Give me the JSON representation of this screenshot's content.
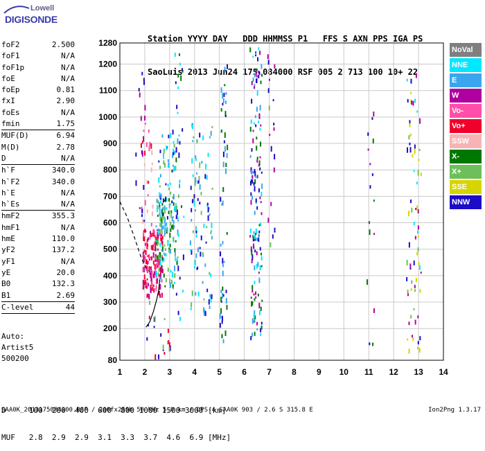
{
  "logo": {
    "top": "Lowell",
    "main": "DIGISONDE"
  },
  "header": {
    "line1": "Station YYYY DAY   DDD HHMMSS P1   FFS S AXN PPS IGA PS",
    "line2": "SaoLuis 2013 Jun24 175 084000 RSF 005 2 713 100 10+ 22"
  },
  "parameters": [
    {
      "name": "foF2",
      "value": "2.500"
    },
    {
      "name": "foF1",
      "value": "N/A"
    },
    {
      "name": "foF1p",
      "value": "N/A"
    },
    {
      "name": "foE",
      "value": "N/A"
    },
    {
      "name": "foEp",
      "value": "0.81"
    },
    {
      "name": "fxI",
      "value": "2.90"
    },
    {
      "name": "foEs",
      "value": "N/A"
    },
    {
      "name": "fmin",
      "value": "1.75"
    },
    {
      "name": "MUF(D)",
      "value": "6.94"
    },
    {
      "name": "M(D)",
      "value": "2.78"
    },
    {
      "name": "D",
      "value": "N/A"
    },
    {
      "name": "h`F",
      "value": "340.0"
    },
    {
      "name": "h`F2",
      "value": "340.0"
    },
    {
      "name": "h`E",
      "value": "N/A"
    },
    {
      "name": "h`Es",
      "value": "N/A"
    },
    {
      "name": "hmF2",
      "value": "355.3"
    },
    {
      "name": "hmF1",
      "value": "N/A"
    },
    {
      "name": "hmE",
      "value": "110.0"
    },
    {
      "name": "yF2",
      "value": "137.2"
    },
    {
      "name": "yF1",
      "value": "N/A"
    },
    {
      "name": "yE",
      "value": "20.0"
    },
    {
      "name": "B0",
      "value": "132.3"
    },
    {
      "name": "B1",
      "value": "2.69"
    },
    {
      "name": "C-level",
      "value": "44"
    }
  ],
  "auto": {
    "line1": "Auto:",
    "line2": "Artist5",
    "line3": "500200"
  },
  "legend": [
    {
      "label": "NoVal",
      "color": "#7f7f7f"
    },
    {
      "label": "NNE",
      "color": "#00e8ff"
    },
    {
      "label": "E",
      "color": "#3aa6f0"
    },
    {
      "label": "W",
      "color": "#b0009f"
    },
    {
      "label": "Vo-",
      "color": "#ff4fa8"
    },
    {
      "label": "Vo+",
      "color": "#f0002a"
    },
    {
      "label": "SSW",
      "color": "#f8b4b4"
    },
    {
      "label": "X-",
      "color": "#007800"
    },
    {
      "label": "X+",
      "color": "#6cbf5a"
    },
    {
      "label": "SSE",
      "color": "#d8d400"
    },
    {
      "label": "NNW",
      "color": "#1c0cc8"
    }
  ],
  "bottom_table": {
    "line1": "D     100  200  400  600  800 1000 1500 3000 [km]",
    "line2": "MUF   2.8  2.9  2.9  3.1  3.3  3.7  4.6  6.9 [MHz]"
  },
  "footer": {
    "left": "SAA0K_2013175084000.RSF / 260fx256h 50 kHz 5.0 km / DPS-4 SAA0K 903 / 2.6 S 315.8 E",
    "right": "Ion2Png 1.3.17"
  },
  "chart_data": {
    "type": "scatter",
    "xlim": [
      1,
      14
    ],
    "ylim": [
      80,
      1280
    ],
    "x_ticks": [
      1,
      2,
      3,
      4,
      5,
      6,
      7,
      8,
      9,
      10,
      11,
      12,
      13,
      14
    ],
    "y_ticks": [
      80,
      200,
      300,
      400,
      500,
      600,
      700,
      800,
      900,
      1000,
      1100,
      1200,
      1280
    ],
    "grid": true,
    "trace_profile": [
      [
        2.05,
        205
      ],
      [
        2.2,
        225
      ],
      [
        2.35,
        265
      ],
      [
        2.48,
        310
      ],
      [
        2.56,
        345
      ],
      [
        2.6,
        385
      ]
    ],
    "dashed_profile": [
      [
        1.0,
        680
      ],
      [
        1.3,
        620
      ],
      [
        1.6,
        540
      ],
      [
        1.85,
        470
      ],
      [
        2.05,
        430
      ],
      [
        2.2,
        415
      ]
    ],
    "clusters": [
      {
        "x": [
          1.9,
          2.7
        ],
        "y": [
          330,
          580
        ],
        "colors": [
          "#f0002a",
          "#ff4fa8",
          "#b0009f"
        ],
        "n": 170
      },
      {
        "x": [
          2.4,
          3.3
        ],
        "y": [
          360,
          700
        ],
        "colors": [
          "#6cbf5a",
          "#007800",
          "#00e8ff",
          "#3aa6f0"
        ],
        "n": 110
      },
      {
        "x": [
          2.5,
          3.4
        ],
        "y": [
          560,
          960
        ],
        "colors": [
          "#00e8ff",
          "#3aa6f0",
          "#6cbf5a",
          "#1c0cc8"
        ],
        "n": 70
      },
      {
        "x": [
          1.8,
          2.3
        ],
        "y": [
          560,
          980
        ],
        "colors": [
          "#f0002a",
          "#ff4fa8",
          "#f8b4b4"
        ],
        "n": 26
      },
      {
        "x": [
          3.8,
          4.7
        ],
        "y": [
          260,
          980
        ],
        "colors": [
          "#1c0cc8",
          "#3aa6f0",
          "#00e8ff",
          "#6cbf5a"
        ],
        "n": 95
      },
      {
        "x": [
          5.0,
          5.3
        ],
        "y": [
          150,
          1240
        ],
        "colors": [
          "#1c0cc8",
          "#007800",
          "#3aa6f0"
        ],
        "n": 55
      },
      {
        "x": [
          6.2,
          6.7
        ],
        "y": [
          170,
          1270
        ],
        "colors": [
          "#1c0cc8",
          "#3aa6f0",
          "#007800",
          "#00e8ff",
          "#b0009f"
        ],
        "n": 150
      },
      {
        "x": [
          6.9,
          7.2
        ],
        "y": [
          500,
          1250
        ],
        "colors": [
          "#1c0cc8",
          "#b0009f",
          "#6cbf5a"
        ],
        "n": 18
      },
      {
        "x": [
          10.9,
          11.2
        ],
        "y": [
          120,
          1200
        ],
        "colors": [
          "#1c0cc8",
          "#b0009f",
          "#007800"
        ],
        "n": 16
      },
      {
        "x": [
          12.5,
          13.1
        ],
        "y": [
          120,
          1200
        ],
        "colors": [
          "#d8d400",
          "#6cbf5a",
          "#1c0cc8",
          "#00e8ff",
          "#b0009f"
        ],
        "n": 70
      },
      {
        "x": [
          1.6,
          2.0
        ],
        "y": [
          580,
          1250
        ],
        "colors": [
          "#1c0cc8",
          "#b0009f"
        ],
        "n": 18
      },
      {
        "x": [
          3.1,
          3.6
        ],
        "y": [
          150,
          1250
        ],
        "colors": [
          "#1c0cc8",
          "#007800",
          "#00e8ff"
        ],
        "n": 28
      },
      {
        "x": [
          2.0,
          3.0
        ],
        "y": [
          100,
          320
        ],
        "colors": [
          "#1c0cc8",
          "#f0002a",
          "#6cbf5a"
        ],
        "n": 20
      }
    ]
  }
}
